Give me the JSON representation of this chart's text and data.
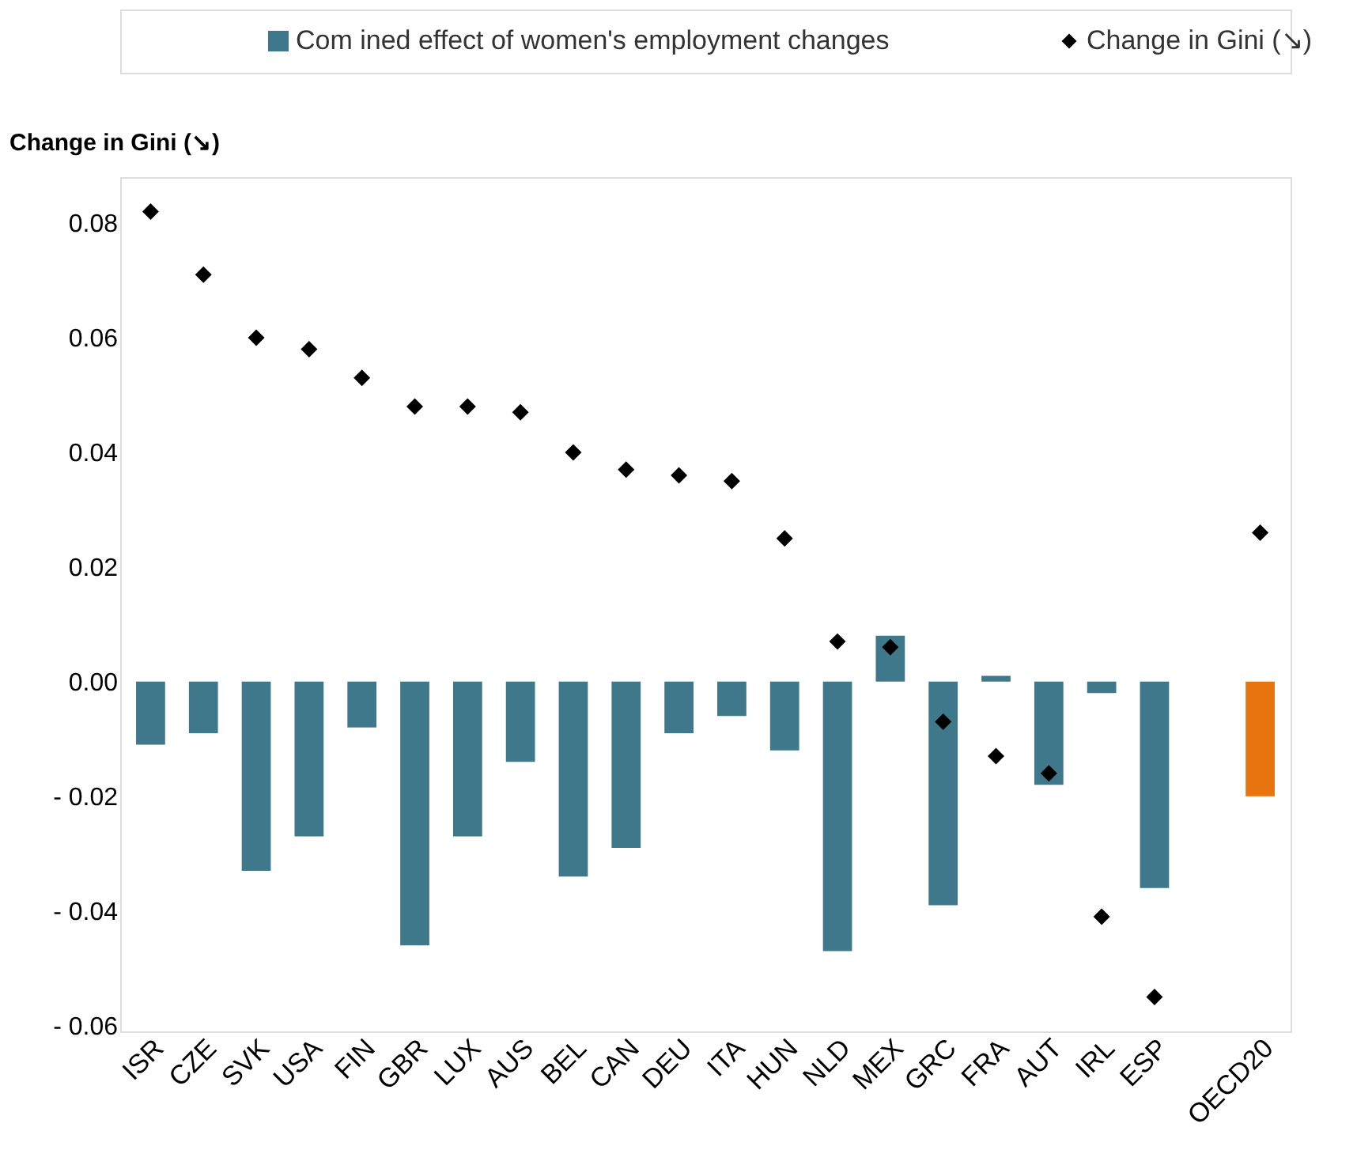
{
  "chart_data": {
    "type": "bar",
    "ylabel": "Change in Gini (↘)",
    "categories": [
      "ISR",
      "CZE",
      "SVK",
      "USA",
      "FIN",
      "GBR",
      "LUX",
      "AUS",
      "BEL",
      "CAN",
      "DEU",
      "ITA",
      "HUN",
      "NLD",
      "MEX",
      "GRC",
      "FRA",
      "AUT",
      "IRL",
      "ESP",
      null,
      "OECD20"
    ],
    "series": [
      {
        "name": "Com  ined effect of women's employment changes",
        "color": "#3f788a",
        "colors": [
          "#3f788a",
          "#3f788a",
          "#3f788a",
          "#3f788a",
          "#3f788a",
          "#3f788a",
          "#3f788a",
          "#3f788a",
          "#3f788a",
          "#3f788a",
          "#3f788a",
          "#3f788a",
          "#3f788a",
          "#3f788a",
          "#3f788a",
          "#3f788a",
          "#3f788a",
          "#3f788a",
          "#3f788a",
          "#3f788a",
          "#3f788a",
          "#e8740f"
        ],
        "values": [
          -0.011,
          -0.009,
          -0.033,
          -0.027,
          -0.008,
          -0.046,
          -0.027,
          -0.014,
          -0.034,
          -0.029,
          -0.009,
          -0.006,
          -0.012,
          -0.047,
          0.008,
          -0.039,
          0.001,
          -0.018,
          -0.002,
          -0.036,
          null,
          -0.02
        ]
      },
      {
        "name": "Change in Gini (↘)",
        "type": "scatter",
        "marker": "diamond",
        "color": "#000000",
        "values": [
          0.082,
          0.071,
          0.06,
          0.058,
          0.053,
          0.048,
          0.048,
          0.047,
          0.04,
          0.037,
          0.036,
          0.035,
          0.025,
          0.007,
          0.006,
          -0.007,
          -0.013,
          -0.016,
          -0.041,
          -0.055,
          null,
          0.026
        ]
      }
    ],
    "ylim": [
      -0.061,
      0.088
    ],
    "yticks": [
      {
        "value": -0.06,
        "label": "- 0.06"
      },
      {
        "value": -0.04,
        "label": "- 0.04"
      },
      {
        "value": -0.02,
        "label": "- 0.02"
      },
      {
        "value": 0,
        "label": "0.00"
      },
      {
        "value": 0.02,
        "label": "0.02"
      },
      {
        "value": 0.04,
        "label": "0.04"
      },
      {
        "value": 0.06,
        "label": "0.06"
      },
      {
        "value": 0.08,
        "label": "0.08"
      }
    ],
    "grid": false,
    "legend": "top"
  }
}
